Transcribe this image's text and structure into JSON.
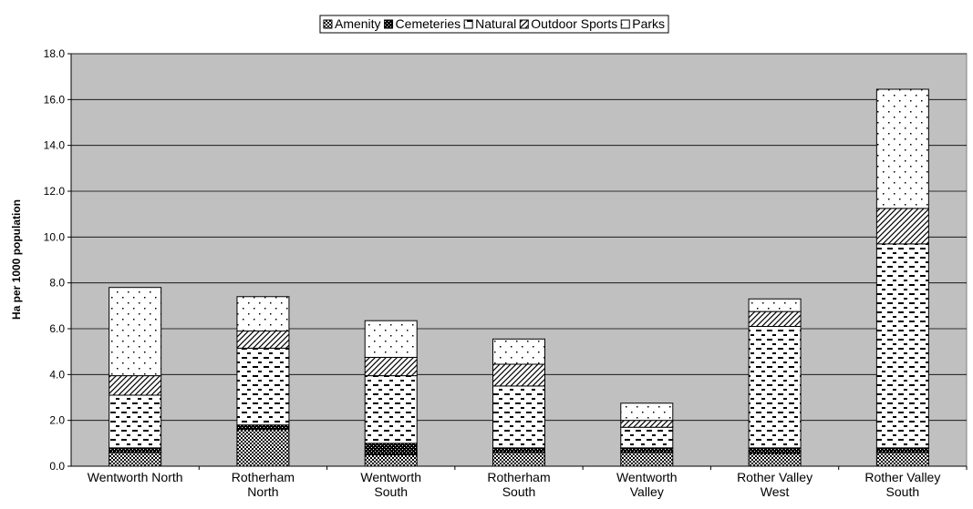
{
  "chart_data": {
    "type": "stacked-bar",
    "y_label": "Ha per 1000 population",
    "categories": [
      "Wentworth North",
      "Rotherham North",
      "Wentworth South",
      "Rotherham South",
      "Wentworth Valley",
      "Rother Valley West",
      "Rother Valley South"
    ],
    "series": [
      {
        "name": "Amenity",
        "color": "#000000",
        "values": [
          0.6,
          1.6,
          0.5,
          0.6,
          0.6,
          0.55,
          0.6
        ]
      },
      {
        "name": "Cemeteries",
        "color": "#000000",
        "values": [
          0.2,
          0.2,
          0.5,
          0.2,
          0.2,
          0.25,
          0.2
        ]
      },
      {
        "name": "Natural",
        "color": "#000000",
        "values": [
          2.3,
          3.35,
          2.95,
          2.7,
          0.9,
          5.3,
          8.9
        ]
      },
      {
        "name": "Outdoor Sports",
        "color": "#000000",
        "values": [
          0.85,
          0.75,
          0.8,
          0.95,
          0.3,
          0.65,
          1.55
        ]
      },
      {
        "name": "Parks",
        "color": "#000000",
        "values": [
          3.85,
          1.5,
          1.6,
          1.1,
          0.75,
          0.55,
          5.2
        ]
      }
    ],
    "ylim": [
      0,
      18
    ],
    "yticks": [
      {
        "value": 0,
        "label": "0.0"
      },
      {
        "value": 2,
        "label": "2.0"
      },
      {
        "value": 4,
        "label": "4.0"
      },
      {
        "value": 6,
        "label": "6.0"
      },
      {
        "value": 8,
        "label": "8.0"
      },
      {
        "value": 10,
        "label": "10.0"
      },
      {
        "value": 12,
        "label": "12.0"
      },
      {
        "value": 14,
        "label": "14.0"
      },
      {
        "value": 16,
        "label": "16.0"
      },
      {
        "value": 18,
        "label": "18.0"
      }
    ],
    "grid": true,
    "plot_background": "#c0c0c0",
    "legend_position": "top"
  }
}
